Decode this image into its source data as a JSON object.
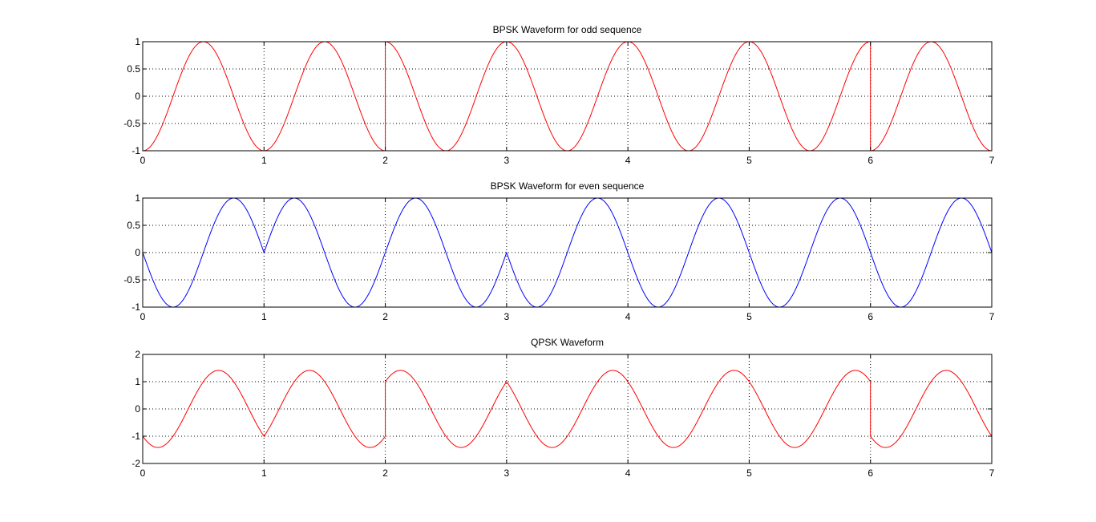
{
  "chart_data": [
    {
      "type": "line",
      "title": "BPSK Waveform for odd sequence",
      "xlabel": "",
      "ylabel": "",
      "xlim": [
        0,
        7
      ],
      "ylim": [
        -1,
        1
      ],
      "xticks": [
        0,
        1,
        2,
        3,
        4,
        5,
        6,
        7
      ],
      "yticks": [
        -1,
        -0.5,
        0,
        0.5,
        1
      ],
      "grid": true,
      "color": "#ff0000",
      "signal": "bpsk_odd",
      "symbols": [
        1,
        1,
        -1,
        -1,
        -1,
        -1,
        1
      ],
      "equation": "y = -s(k) * cos(2*pi*t), k = floor(t)"
    },
    {
      "type": "line",
      "title": "BPSK Waveform for even sequence",
      "xlabel": "",
      "ylabel": "",
      "xlim": [
        0,
        7
      ],
      "ylim": [
        -1,
        1
      ],
      "xticks": [
        0,
        1,
        2,
        3,
        4,
        5,
        6,
        7
      ],
      "yticks": [
        -1,
        -0.5,
        0,
        0.5,
        1
      ],
      "grid": true,
      "color": "#0000ff",
      "signal": "bpsk_even",
      "symbols": [
        1,
        -1,
        -1,
        1,
        1,
        1,
        1
      ],
      "equation": "y = -s(k) * sin(2*pi*t), k = floor(t)"
    },
    {
      "type": "line",
      "title": "QPSK Waveform",
      "xlabel": "",
      "ylabel": "",
      "xlim": [
        0,
        7
      ],
      "ylim": [
        -2,
        2
      ],
      "xticks": [
        0,
        1,
        2,
        3,
        4,
        5,
        6,
        7
      ],
      "yticks": [
        -2,
        -1,
        0,
        1,
        2
      ],
      "grid": true,
      "color": "#ff0000",
      "signal": "qpsk",
      "equation": "y = bpsk_odd(t) + bpsk_even(t)"
    }
  ]
}
